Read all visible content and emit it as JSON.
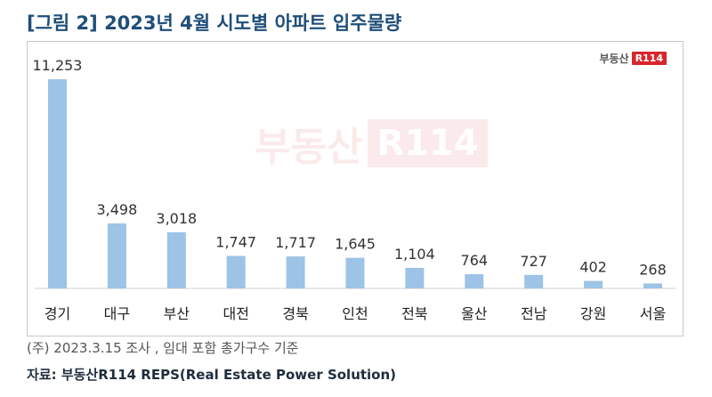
{
  "title": "[그림 2] 2023년 4월 시도별 아파트 입주물량",
  "brand": {
    "text": "부동산",
    "badge": "R114"
  },
  "watermark": {
    "text": "부동산",
    "badge": "R114"
  },
  "chart_data": {
    "type": "bar",
    "title": "[그림 2] 2023년 4월 시도별 아파트 입주물량",
    "categories": [
      "경기",
      "대구",
      "부산",
      "대전",
      "경북",
      "인천",
      "전북",
      "울산",
      "전남",
      "강원",
      "서울"
    ],
    "values": [
      11253,
      3498,
      3018,
      1747,
      1717,
      1645,
      1104,
      764,
      727,
      402,
      268
    ],
    "value_labels": [
      "11,253",
      "3,498",
      "3,018",
      "1,747",
      "1,717",
      "1,645",
      "1,104",
      "764",
      "727",
      "402",
      "268"
    ],
    "ylim": [
      0,
      11253
    ],
    "grid": false,
    "bar_color": "#9dc3e6"
  },
  "footnote": "(주) 2023.3.15 조사 , 임대 포함 총가구수 기준",
  "source": "자료: 부동산R114 REPS(Real Estate Power Solution)"
}
